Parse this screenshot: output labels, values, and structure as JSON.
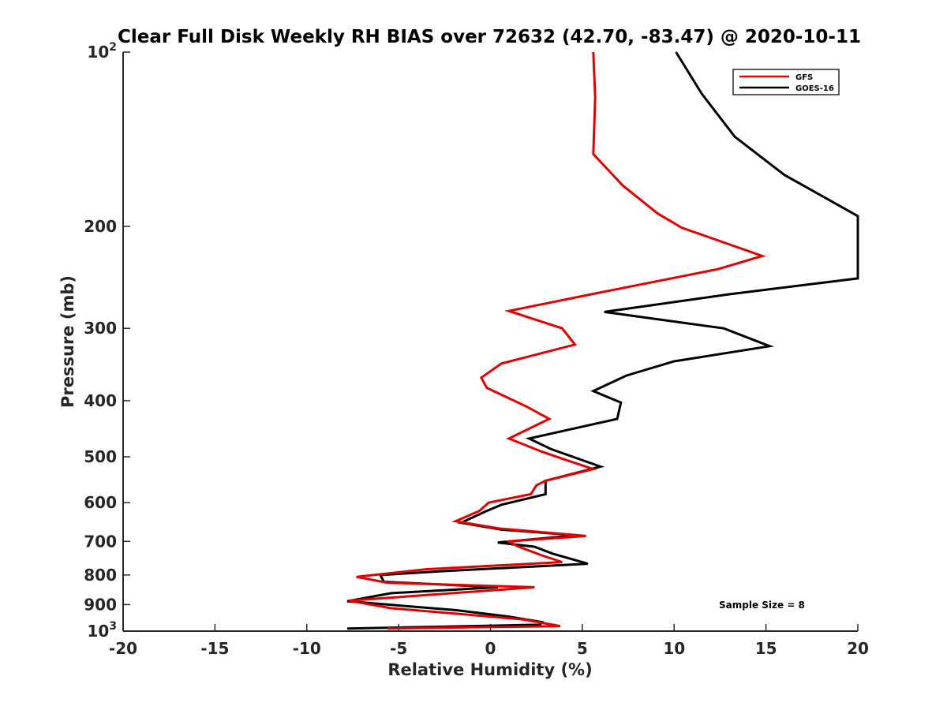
{
  "chart_data": {
    "type": "line",
    "title": "Clear Full Disk Weekly RH BIAS over 72632 (42.70, -83.47) @ 2020-10-11",
    "xlabel": "Relative Humidity (%)",
    "ylabel": "Pressure (mb)",
    "xlim": [
      -20,
      20
    ],
    "ylim": [
      1000,
      100
    ],
    "yscale": "log",
    "y_reversed": true,
    "grid": false,
    "x_ticks": [
      "-20",
      "-15",
      "-10",
      "-5",
      "0",
      "5",
      "10",
      "15",
      "20"
    ],
    "y_ticks": [
      {
        "value": 100,
        "base": "10",
        "exp": "2"
      },
      {
        "value": 200,
        "label": "200"
      },
      {
        "value": 300,
        "label": "300"
      },
      {
        "value": 400,
        "label": "400"
      },
      {
        "value": 500,
        "label": "500"
      },
      {
        "value": 600,
        "label": "600"
      },
      {
        "value": 700,
        "label": "700"
      },
      {
        "value": 800,
        "label": "800"
      },
      {
        "value": 900,
        "label": "900"
      },
      {
        "value": 1000,
        "base": "10",
        "exp": "3"
      }
    ],
    "legend_position": "top-right",
    "annotation": "Sample Size = 8",
    "series": [
      {
        "name": "GFS",
        "color": "#e00000",
        "points": [
          [
            5.6,
            100
          ],
          [
            5.7,
            120
          ],
          [
            5.6,
            150
          ],
          [
            7.2,
            170
          ],
          [
            9.1,
            190
          ],
          [
            10.4,
            201
          ],
          [
            14.8,
            225
          ],
          [
            12.4,
            237
          ],
          [
            5.5,
            262
          ],
          [
            1.0,
            280
          ],
          [
            3.9,
            300
          ],
          [
            4.6,
            320
          ],
          [
            0.6,
            345
          ],
          [
            -0.5,
            365
          ],
          [
            -0.2,
            380
          ],
          [
            2.0,
            410
          ],
          [
            3.2,
            430
          ],
          [
            1.0,
            465
          ],
          [
            2.8,
            490
          ],
          [
            4.0,
            505
          ],
          [
            5.6,
            525
          ],
          [
            3.0,
            550
          ],
          [
            2.5,
            560
          ],
          [
            2.2,
            580
          ],
          [
            -0.1,
            600
          ],
          [
            -0.6,
            620
          ],
          [
            -1.9,
            646
          ],
          [
            0.5,
            665
          ],
          [
            5.2,
            685
          ],
          [
            1.0,
            700
          ],
          [
            1.5,
            714
          ],
          [
            2.8,
            740
          ],
          [
            3.9,
            760
          ],
          [
            -3.5,
            782
          ],
          [
            -7.3,
            806
          ],
          [
            -5.6,
            825
          ],
          [
            2.4,
            840
          ],
          [
            -7.7,
            886
          ],
          [
            -5.4,
            913
          ],
          [
            -1.5,
            935
          ],
          [
            1.8,
            955
          ],
          [
            3.8,
            980
          ],
          [
            -5.6,
            990
          ]
        ]
      },
      {
        "name": "GOES-16",
        "color": "#000000",
        "points": [
          [
            10.1,
            100
          ],
          [
            11.5,
            118
          ],
          [
            13.3,
            140
          ],
          [
            16.0,
            163
          ],
          [
            20.0,
            192
          ],
          [
            20.0,
            246
          ],
          [
            13.0,
            262
          ],
          [
            6.2,
            281
          ],
          [
            12.7,
            300
          ],
          [
            15.2,
            322
          ],
          [
            10.0,
            342
          ],
          [
            7.4,
            362
          ],
          [
            5.6,
            385
          ],
          [
            7.1,
            403
          ],
          [
            6.9,
            430
          ],
          [
            2.1,
            465
          ],
          [
            3.3,
            485
          ],
          [
            6.0,
            520
          ],
          [
            3.0,
            550
          ],
          [
            3.0,
            580
          ],
          [
            0.6,
            605
          ],
          [
            -0.3,
            622
          ],
          [
            -1.6,
            650
          ],
          [
            0.6,
            668
          ],
          [
            4.7,
            683
          ],
          [
            0.4,
            703
          ],
          [
            2.4,
            715
          ],
          [
            3.4,
            735
          ],
          [
            5.3,
            765
          ],
          [
            -2.7,
            788
          ],
          [
            -6.0,
            800
          ],
          [
            -5.8,
            822
          ],
          [
            0.4,
            840
          ],
          [
            -5.4,
            860
          ],
          [
            -7.8,
            888
          ],
          [
            -1.9,
            920
          ],
          [
            1.0,
            944
          ],
          [
            2.8,
            965
          ],
          [
            2.7,
            975
          ],
          [
            -7.8,
            990
          ]
        ]
      }
    ]
  }
}
